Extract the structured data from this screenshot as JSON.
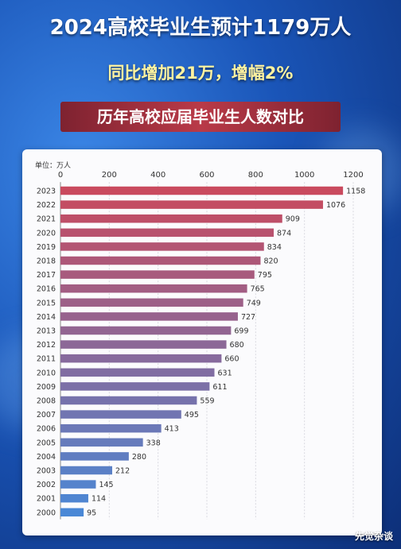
{
  "title": "2024高校毕业生预计1179万人",
  "subtitle": "同比增加21万，增幅2%",
  "banner": "历年高校应届毕业生人数对比",
  "watermark": "先觉杂谈",
  "colors": {
    "bar_top": "#c94a5e",
    "bar_bottom": "#4a88d6"
  },
  "chart_data": {
    "type": "bar",
    "orientation": "horizontal",
    "unit_label": "单位：万人",
    "xlim": [
      0,
      1200
    ],
    "xticks": [
      0,
      200,
      400,
      600,
      800,
      1000,
      1200
    ],
    "categories": [
      "2023",
      "2022",
      "2021",
      "2020",
      "2019",
      "2018",
      "2017",
      "2016",
      "2015",
      "2014",
      "2013",
      "2012",
      "2011",
      "2010",
      "2009",
      "2008",
      "2007",
      "2006",
      "2005",
      "2004",
      "2003",
      "2002",
      "2001",
      "2000"
    ],
    "values": [
      1158,
      1076,
      909,
      874,
      834,
      820,
      795,
      765,
      749,
      727,
      699,
      680,
      660,
      631,
      611,
      559,
      495,
      413,
      338,
      280,
      212,
      145,
      114,
      95
    ],
    "grid": true
  }
}
